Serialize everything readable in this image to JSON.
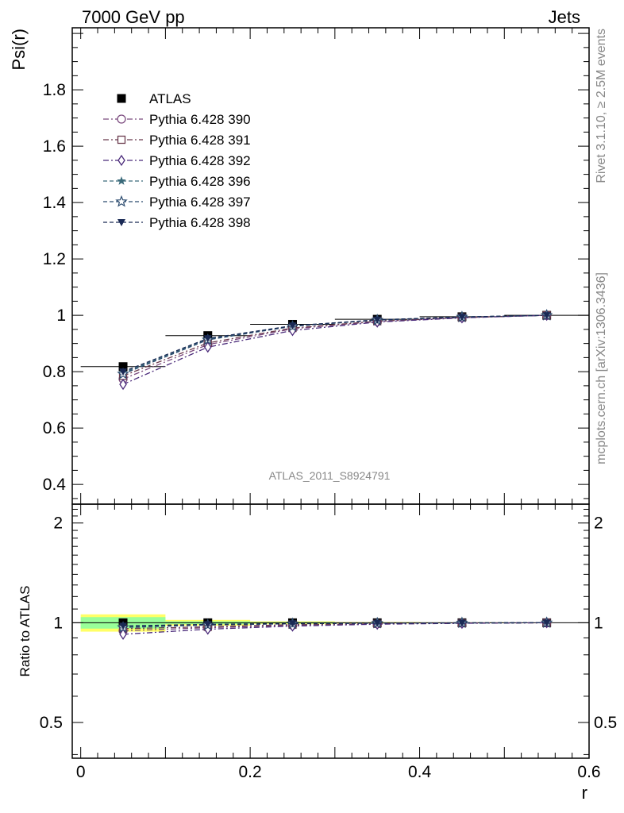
{
  "header": {
    "left": "7000 GeV pp",
    "right": "Jets"
  },
  "side_text": {
    "rivet": "Rivet 3.1.10, ≥ 2.5M events",
    "mcplots": "mcplots.cern.ch [arXiv:1306.3436]"
  },
  "watermark": "ATLAS_2011_S8924791",
  "chart_data": [
    {
      "type": "scatter",
      "panel": "main",
      "ylabel": "Psi(r)",
      "xlim": [
        -0.01,
        0.6
      ],
      "ylim": [
        0.33,
        2.02
      ],
      "y_ticks": [
        "0.4",
        "0.6",
        "0.8",
        "1",
        "1.2",
        "1.4",
        "1.6",
        "1.8"
      ],
      "legend_position": "top-left",
      "x": [
        0.05,
        0.15,
        0.25,
        0.35,
        0.45,
        0.55
      ],
      "series": [
        {
          "name": "ATLAS",
          "marker": "filled-square",
          "color": "#000000",
          "values": [
            0.818,
            0.928,
            0.968,
            0.986,
            0.995,
            1.0
          ],
          "x_err": [
            0.05,
            0.05,
            0.05,
            0.05,
            0.05,
            0.05
          ]
        },
        {
          "name": "Pythia 6.428 390",
          "marker": "open-circle",
          "color": "#7b4a7e",
          "dash": "dashdot",
          "values": [
            0.774,
            0.896,
            0.952,
            0.978,
            0.992,
            1.0
          ]
        },
        {
          "name": "Pythia 6.428 391",
          "marker": "open-square",
          "color": "#6b3b4e",
          "dash": "dashdot",
          "values": [
            0.785,
            0.902,
            0.955,
            0.979,
            0.992,
            1.0
          ]
        },
        {
          "name": "Pythia 6.428 392",
          "marker": "open-diamond",
          "color": "#4a2a7a",
          "dash": "dashdot",
          "values": [
            0.755,
            0.887,
            0.946,
            0.976,
            0.991,
            1.0
          ]
        },
        {
          "name": "Pythia 6.428 396",
          "marker": "filled-star",
          "color": "#3a6a7a",
          "dash": "dashed",
          "values": [
            0.796,
            0.915,
            0.962,
            0.983,
            0.994,
            1.0
          ]
        },
        {
          "name": "Pythia 6.428 397",
          "marker": "open-star",
          "color": "#2a4a6e",
          "dash": "dashed",
          "values": [
            0.792,
            0.913,
            0.961,
            0.983,
            0.994,
            1.0
          ]
        },
        {
          "name": "Pythia 6.428 398",
          "marker": "filled-down-triangle",
          "color": "#1a2a55",
          "dash": "dashed",
          "values": [
            0.8,
            0.918,
            0.963,
            0.984,
            0.994,
            1.0
          ]
        }
      ]
    },
    {
      "type": "scatter",
      "panel": "ratio",
      "ylabel": "Ratio to ATLAS",
      "xlabel": "r",
      "xlim": [
        -0.01,
        0.6
      ],
      "ylim": [
        0.39,
        2.28
      ],
      "y_ticks": [
        "0.5",
        "1",
        "2"
      ],
      "x_ticks": [
        "0",
        "0.2",
        "0.4",
        "0.6"
      ],
      "y_scale": "log",
      "x": [
        0.05,
        0.15,
        0.25,
        0.35,
        0.45,
        0.55
      ],
      "band": {
        "colors": [
          "#ffff66",
          "#99ff99"
        ],
        "outer": [
          [
            0.94,
            1.06
          ],
          [
            0.98,
            1.02
          ],
          [
            0.99,
            1.01
          ],
          [
            0.995,
            1.005
          ],
          [
            0.997,
            1.003
          ],
          [
            1.0,
            1.0
          ]
        ],
        "inner": [
          [
            0.96,
            1.04
          ],
          [
            0.99,
            1.01
          ],
          [
            0.995,
            1.005
          ],
          [
            0.998,
            1.002
          ],
          [
            0.999,
            1.001
          ],
          [
            1.0,
            1.0
          ]
        ]
      },
      "series": [
        {
          "name": "ATLAS",
          "values": [
            1.0,
            1.0,
            1.0,
            1.0,
            1.0,
            1.0
          ]
        },
        {
          "name": "Pythia 6.428 390",
          "values": [
            0.946,
            0.966,
            0.983,
            0.992,
            0.997,
            1.0
          ]
        },
        {
          "name": "Pythia 6.428 391",
          "values": [
            0.96,
            0.972,
            0.987,
            0.993,
            0.997,
            1.0
          ]
        },
        {
          "name": "Pythia 6.428 392",
          "values": [
            0.923,
            0.956,
            0.977,
            0.99,
            0.996,
            1.0
          ]
        },
        {
          "name": "Pythia 6.428 396",
          "values": [
            0.973,
            0.986,
            0.994,
            0.997,
            0.999,
            1.0
          ]
        },
        {
          "name": "Pythia 6.428 397",
          "values": [
            0.968,
            0.984,
            0.993,
            0.997,
            0.999,
            1.0
          ]
        },
        {
          "name": "Pythia 6.428 398",
          "values": [
            0.978,
            0.989,
            0.995,
            0.998,
            0.999,
            1.0
          ]
        }
      ]
    }
  ]
}
